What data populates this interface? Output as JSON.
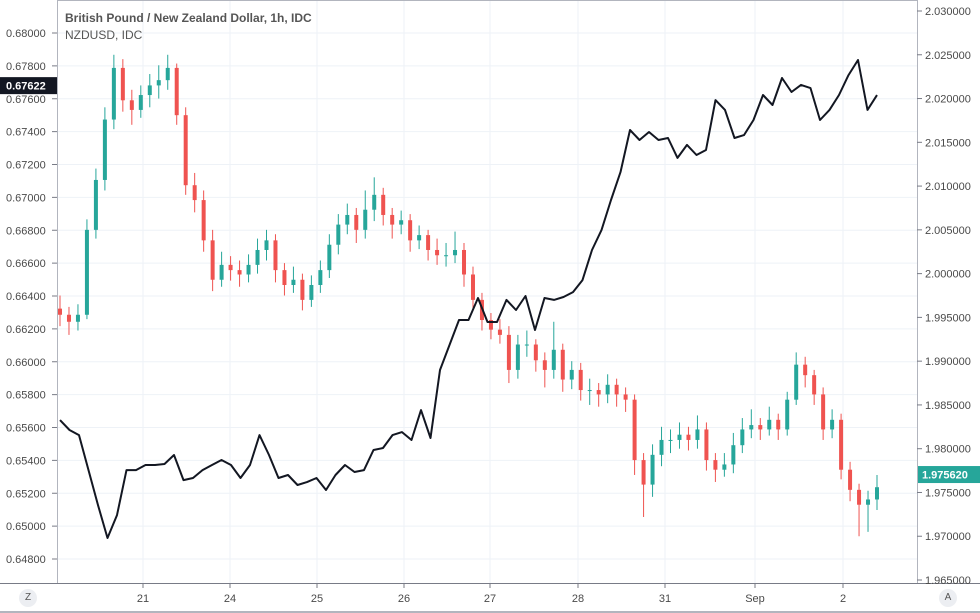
{
  "legend": {
    "main_series": "British Pound / New Zealand Dollar, 1h, IDC",
    "compare_series": "NZDUSD, IDC"
  },
  "bottom_buttons": {
    "left": "Z",
    "right": "A"
  },
  "colors": {
    "up": "#26a69a",
    "down": "#ef5350",
    "line": "#131722",
    "grid": "#eef2f7",
    "last_price_main": "#26a69a",
    "last_price_compare": "#131722"
  },
  "chart_data": [
    {
      "type": "candlestick",
      "name": "British Pound / New Zealand Dollar, 1h, IDC",
      "axis": "right",
      "last_price_label": "1.975620",
      "y_ticks": [
        "2.030000",
        "2.025000",
        "2.020000",
        "2.015000",
        "2.010000",
        "2.005000",
        "2.000000",
        "1.995000",
        "1.990000",
        "1.985000",
        "1.980000",
        "1.975000",
        "1.970000",
        "1.965000"
      ],
      "ohlc": [
        [
          1.996,
          1.9975,
          1.994,
          1.9953
        ],
        [
          1.9953,
          1.9962,
          1.993,
          1.9945
        ],
        [
          1.9945,
          1.9965,
          1.9935,
          1.9953
        ],
        [
          1.9953,
          2.0062,
          1.9948,
          2.005
        ],
        [
          2.005,
          2.012,
          2.004,
          2.0107
        ],
        [
          2.0107,
          2.019,
          2.0095,
          2.0176
        ],
        [
          2.0176,
          2.025,
          2.0165,
          2.0235
        ],
        [
          2.0235,
          2.0245,
          2.0185,
          2.0198
        ],
        [
          2.0198,
          2.021,
          2.017,
          2.0187
        ],
        [
          2.0187,
          2.0215,
          2.0178,
          2.0204
        ],
        [
          2.0204,
          2.0228,
          2.019,
          2.0215
        ],
        [
          2.0215,
          2.0238,
          2.02,
          2.0221
        ],
        [
          2.0221,
          2.025,
          2.021,
          2.0235
        ],
        [
          2.0235,
          2.024,
          2.017,
          2.0181
        ],
        [
          2.0181,
          2.019,
          2.009,
          2.0101
        ],
        [
          2.0101,
          2.0115,
          2.007,
          2.0084
        ],
        [
          2.0084,
          2.0095,
          2.0025,
          2.0038
        ],
        [
          2.0038,
          2.005,
          1.998,
          1.9993
        ],
        [
          1.9993,
          2.0025,
          1.9985,
          2.001
        ],
        [
          2.001,
          2.002,
          1.9992,
          2.0004
        ],
        [
          2.0004,
          2.0015,
          1.9985,
          1.9999
        ],
        [
          1.9999,
          2.0022,
          1.999,
          2.001
        ],
        [
          2.001,
          2.004,
          2.0,
          2.0027
        ],
        [
          2.0027,
          2.005,
          2.0015,
          2.0038
        ],
        [
          2.0038,
          2.0045,
          1.999,
          2.0004
        ],
        [
          2.0004,
          2.0012,
          1.9975,
          1.9987
        ],
        [
          1.9987,
          2.0008,
          1.9978,
          1.9993
        ],
        [
          1.9993,
          2.0,
          1.9958,
          1.997
        ],
        [
          1.997,
          1.9998,
          1.9962,
          1.9987
        ],
        [
          1.9987,
          2.0015,
          1.9978,
          2.0004
        ],
        [
          2.0004,
          2.0045,
          1.9995,
          2.0033
        ],
        [
          2.0033,
          2.0068,
          2.0022,
          2.0056
        ],
        [
          2.0056,
          2.008,
          2.0045,
          2.0067
        ],
        [
          2.0067,
          2.0075,
          2.0035,
          2.005
        ],
        [
          2.005,
          2.0095,
          2.004,
          2.0073
        ],
        [
          2.0073,
          2.011,
          2.006,
          2.009
        ],
        [
          2.009,
          2.0098,
          2.0055,
          2.0067
        ],
        [
          2.0067,
          2.0075,
          2.004,
          2.0056
        ],
        [
          2.0056,
          2.0072,
          2.0045,
          2.0061
        ],
        [
          2.0061,
          2.0068,
          2.0025,
          2.0038
        ],
        [
          2.0038,
          2.0055,
          2.0028,
          2.0044
        ],
        [
          2.0044,
          2.005,
          2.0015,
          2.0027
        ],
        [
          2.0027,
          2.004,
          2.001,
          2.0021
        ],
        [
          2.0021,
          2.0035,
          2.0008,
          2.0021
        ],
        [
          2.0021,
          2.0048,
          2.0012,
          2.0027
        ],
        [
          2.0027,
          2.0035,
          1.9985,
          1.9999
        ],
        [
          1.9999,
          2.0008,
          1.9958,
          1.997
        ],
        [
          1.997,
          1.9978,
          1.9935,
          1.9947
        ],
        [
          1.9947,
          1.9955,
          1.9925,
          1.9936
        ],
        [
          1.9936,
          1.9948,
          1.992,
          1.993
        ],
        [
          1.993,
          1.994,
          1.9875,
          1.989
        ],
        [
          1.989,
          1.993,
          1.988,
          1.9919
        ],
        [
          1.9919,
          1.9935,
          1.9905,
          1.9919
        ],
        [
          1.9919,
          1.9925,
          1.9888,
          1.9901
        ],
        [
          1.9901,
          1.991,
          1.987,
          1.989
        ],
        [
          1.989,
          1.9945,
          1.988,
          1.9913
        ],
        [
          1.9913,
          1.992,
          1.9865,
          1.9879
        ],
        [
          1.9879,
          1.99,
          1.9868,
          1.989
        ],
        [
          1.989,
          1.9898,
          1.9855,
          1.9867
        ],
        [
          1.9867,
          1.988,
          1.985,
          1.9867
        ],
        [
          1.9867,
          1.9875,
          1.9848,
          1.9862
        ],
        [
          1.9862,
          1.9885,
          1.9852,
          1.9873
        ],
        [
          1.9873,
          1.988,
          1.9848,
          1.9862
        ],
        [
          1.9862,
          1.987,
          1.9842,
          1.9856
        ],
        [
          1.9856,
          1.9862,
          1.977,
          1.9787
        ],
        [
          1.9787,
          1.9795,
          1.9722,
          1.9759
        ],
        [
          1.9759,
          1.9805,
          1.9745,
          1.9793
        ],
        [
          1.9793,
          1.9825,
          1.978,
          1.981
        ],
        [
          1.981,
          1.9822,
          1.9795,
          1.981
        ],
        [
          1.981,
          1.983,
          1.98,
          1.9816
        ],
        [
          1.9816,
          1.9825,
          1.9798,
          1.981
        ],
        [
          1.981,
          1.9838,
          1.98,
          1.9822
        ],
        [
          1.9822,
          1.983,
          1.9775,
          1.9787
        ],
        [
          1.9787,
          1.9795,
          1.9762,
          1.9776
        ],
        [
          1.9776,
          1.9795,
          1.9768,
          1.9782
        ],
        [
          1.9782,
          1.9818,
          1.9772,
          1.9804
        ],
        [
          1.9804,
          1.9835,
          1.9795,
          1.9822
        ],
        [
          1.9822,
          1.9845,
          1.9812,
          1.9827
        ],
        [
          1.9827,
          1.9835,
          1.981,
          1.9822
        ],
        [
          1.9822,
          1.9848,
          1.9815,
          1.9833
        ],
        [
          1.9833,
          1.984,
          1.981,
          1.9822
        ],
        [
          1.9822,
          1.9865,
          1.9815,
          1.9856
        ],
        [
          1.9856,
          1.991,
          1.985,
          1.9896
        ],
        [
          1.9896,
          1.9905,
          1.987,
          1.9884
        ],
        [
          1.9884,
          1.989,
          1.985,
          1.9862
        ],
        [
          1.9862,
          1.987,
          1.981,
          1.9822
        ],
        [
          1.9822,
          1.9845,
          1.9812,
          1.9833
        ],
        [
          1.9833,
          1.984,
          1.9765,
          1.9776
        ],
        [
          1.9776,
          1.9785,
          1.974,
          1.9753
        ],
        [
          1.9753,
          1.976,
          1.97,
          1.9736
        ],
        [
          1.9736,
          1.9752,
          1.9705,
          1.9742
        ],
        [
          1.9742,
          1.977,
          1.973,
          1.9756
        ]
      ]
    },
    {
      "type": "line",
      "name": "NZDUSD, IDC",
      "axis": "left",
      "last_price_label": "0.67622",
      "y_ticks": [
        "0.68000",
        "0.67800",
        "0.67600",
        "0.67400",
        "0.67200",
        "0.67000",
        "0.66800",
        "0.66600",
        "0.66400",
        "0.66200",
        "0.66000",
        "0.65800",
        "0.65600",
        "0.65400",
        "0.65200",
        "0.65000",
        "0.64800"
      ],
      "values": [
        0.65645,
        0.65585,
        0.65554,
        0.65341,
        0.65128,
        0.64928,
        0.65067,
        0.65341,
        0.65341,
        0.65372,
        0.65372,
        0.65378,
        0.65433,
        0.6528,
        0.65293,
        0.65341,
        0.65372,
        0.65402,
        0.65372,
        0.65293,
        0.65372,
        0.65554,
        0.65433,
        0.65293,
        0.65311,
        0.6525,
        0.65268,
        0.65293,
        0.6522,
        0.65311,
        0.65372,
        0.65329,
        0.65341,
        0.65463,
        0.65475,
        0.65554,
        0.65572,
        0.65524,
        0.65706,
        0.65536,
        0.6595,
        0.66102,
        0.66254,
        0.66254,
        0.66388,
        0.66242,
        0.66242,
        0.66376,
        0.66315,
        0.664,
        0.66193,
        0.66388,
        0.66376,
        0.66394,
        0.66424,
        0.66497,
        0.6668,
        0.66801,
        0.66984,
        0.67154,
        0.6741,
        0.67349,
        0.67398,
        0.67349,
        0.67361,
        0.6724,
        0.67319,
        0.67258,
        0.67288,
        0.67592,
        0.67532,
        0.67361,
        0.67379,
        0.67471,
        0.67623,
        0.67562,
        0.67726,
        0.67641,
        0.67684,
        0.67665,
        0.67471,
        0.67532,
        0.67623,
        0.67744,
        0.67836,
        0.67532,
        0.67622
      ]
    }
  ],
  "x_axis": {
    "ticks": [
      "21",
      "24",
      "25",
      "26",
      "27",
      "28",
      "31",
      "Sep",
      "2"
    ]
  }
}
